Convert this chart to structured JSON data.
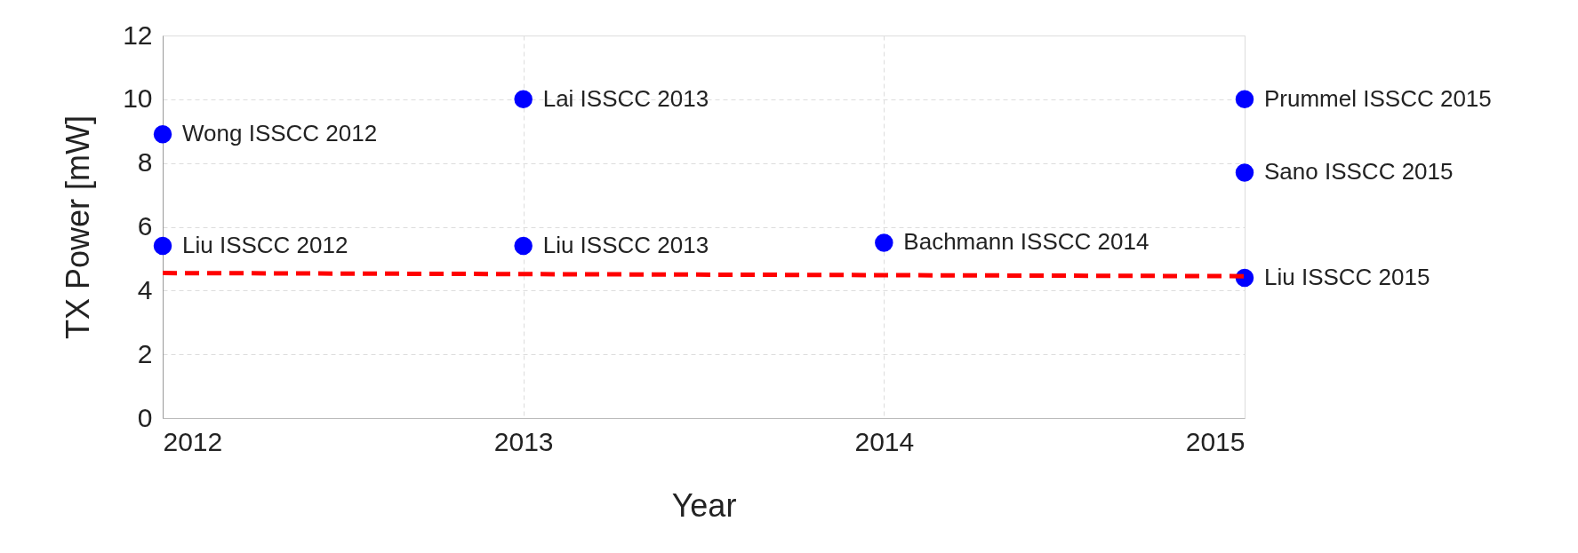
{
  "chart_data": {
    "type": "scatter",
    "xlabel": "Year",
    "ylabel": "TX Power [mW]",
    "xlim": [
      2012,
      2015
    ],
    "xticks": [
      2012,
      2013,
      2014,
      2015
    ],
    "ylim": [
      0,
      12
    ],
    "yticks": [
      0,
      2,
      4,
      6,
      8,
      10,
      12
    ],
    "grid": true,
    "series": [
      {
        "color": "#0000ff",
        "marker": "circle",
        "x": [
          2012,
          2012,
          2013,
          2013,
          2014,
          2015,
          2015,
          2015
        ],
        "values": [
          8.9,
          5.4,
          10,
          5.4,
          5.5,
          10,
          7.7,
          4.4
        ]
      },
      {
        "type": "line",
        "color": "#ff0000",
        "line_style": "dashed",
        "x": [
          2012,
          2015
        ],
        "values": [
          4.55,
          4.45
        ]
      }
    ],
    "annotations": [
      {
        "text": "Wong ISSCC 2012",
        "x": 2012,
        "y": 8.9
      },
      {
        "text": "Liu ISSCC 2012",
        "x": 2012,
        "y": 5.4
      },
      {
        "text": "Lai ISSCC 2013",
        "x": 2013,
        "y": 10
      },
      {
        "text": "Liu ISSCC 2013",
        "x": 2013,
        "y": 5.4
      },
      {
        "text": "Bachmann ISSCC 2014",
        "x": 2014,
        "y": 5.5
      },
      {
        "text": "Prummel ISSCC 2015",
        "x": 2015,
        "y": 10
      },
      {
        "text": "Sano ISSCC 2015",
        "x": 2015,
        "y": 7.7
      },
      {
        "text": "Liu ISSCC 2015",
        "x": 2015,
        "y": 4.4
      }
    ]
  }
}
